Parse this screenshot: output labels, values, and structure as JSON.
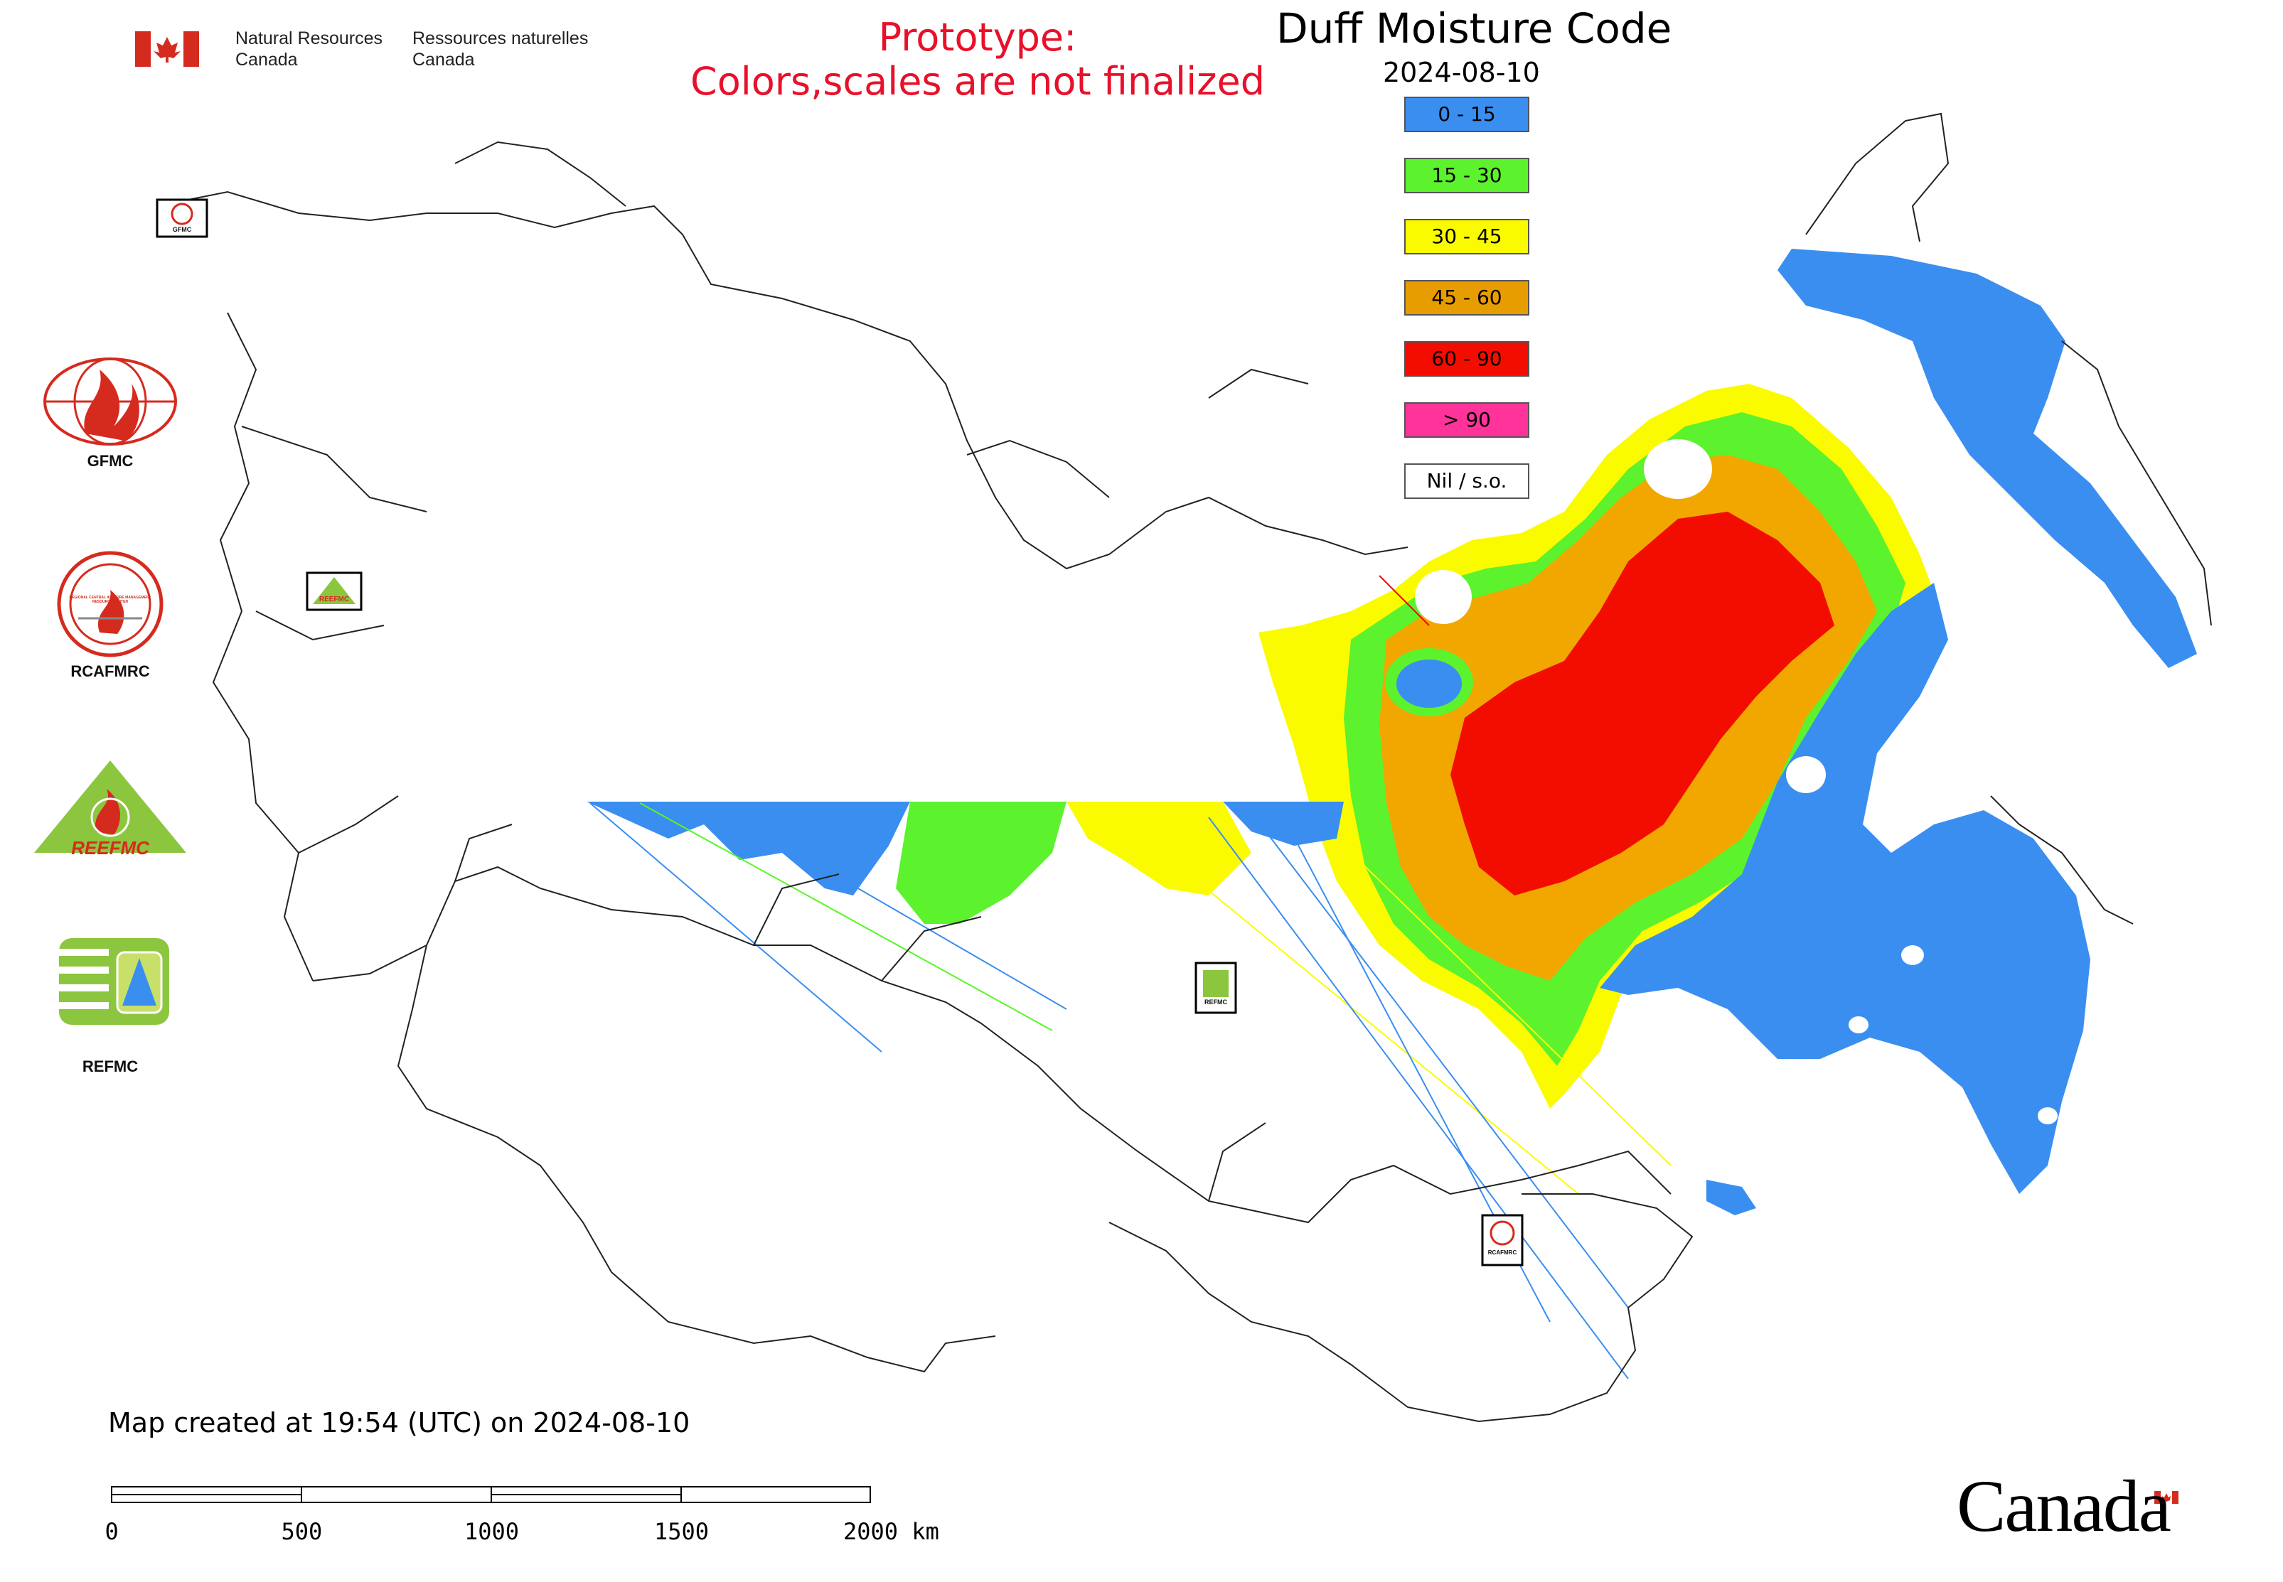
{
  "header": {
    "org_en_line1": "Natural Resources",
    "org_en_line2": "Canada",
    "org_fr_line1": "Ressources naturelles",
    "org_fr_line2": "Canada"
  },
  "prototype_notice": {
    "line1": "Prototype:",
    "line2": "Colors,scales are not finalized"
  },
  "map": {
    "title": "Duff Moisture Code",
    "date": "2024-08-10",
    "created_text": "Map created at 19:54 (UTC) on 2024-08-10"
  },
  "legend": [
    {
      "label": "0 - 15",
      "color": "#3a8ef0"
    },
    {
      "label": "15 - 30",
      "color": "#5cf22e"
    },
    {
      "label": "30 - 45",
      "color": "#fbfb00"
    },
    {
      "label": "45 - 60",
      "color": "#e79d00"
    },
    {
      "label": "60 - 90",
      "color": "#f20d00"
    },
    {
      "label": "> 90",
      "color": "#ff3399"
    },
    {
      "label": "Nil / s.o.",
      "color": "#ffffff"
    }
  ],
  "logos": {
    "gfmc": "GFMC",
    "rcafmrc": "RCAFMRC",
    "reefmc_logo_text": "REEFMC",
    "refmc": "REFMC",
    "rcafmrc_ring_text": "REGIONAL CENTRAL ASIA FIRE MANAGEMENT RESOURCE CENTER",
    "map_marker_gfmc": "GFMC",
    "map_marker_reefmc": "REEFMC",
    "map_marker_refmc": "REFMC",
    "map_marker_rcafmrc": "RCAFMRC"
  },
  "scale_bar": {
    "labels": [
      "0",
      "500",
      "1000",
      "1500",
      "2000 km"
    ]
  },
  "footer": {
    "wordmark": "Canada"
  },
  "colors": {
    "prototype_red": "#e8102a",
    "canada_flag_red": "#d52b1e"
  }
}
